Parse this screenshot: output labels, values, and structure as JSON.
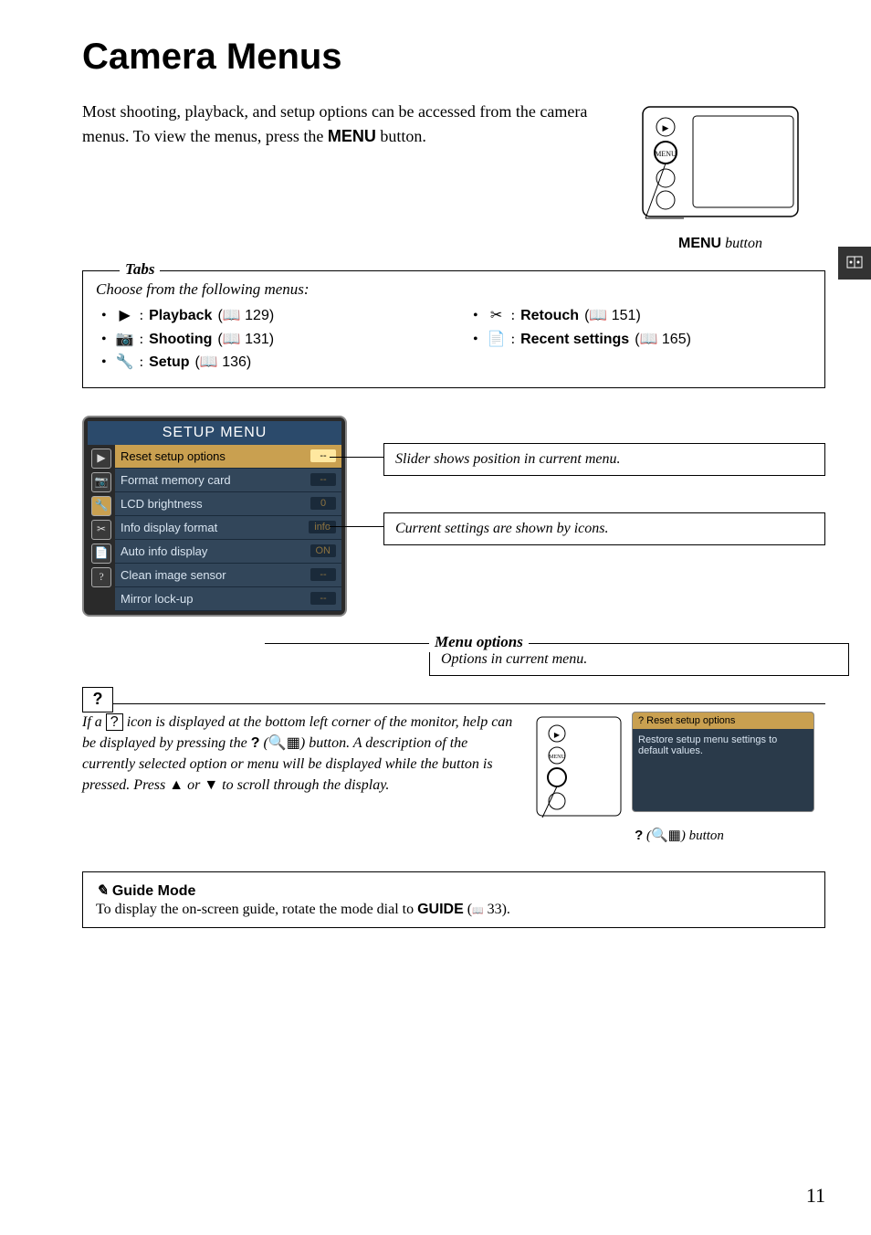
{
  "title": "Camera Menus",
  "intro": "Most shooting, playback, and setup options can be accessed from the camera menus. To view the menus, press the ",
  "intro_button": "MENU",
  "intro_suffix": " button.",
  "menu_button_caption_bold": "MENU",
  "menu_button_caption_ital": " button",
  "tabs": {
    "label": "Tabs",
    "intro": "Choose from the following menus:",
    "left": [
      {
        "icon": "▶",
        "name": "Playback",
        "ref": "129"
      },
      {
        "icon": "📷",
        "name": "Shooting",
        "ref": "131"
      },
      {
        "icon": "🔧",
        "name": "Setup",
        "ref": "136"
      }
    ],
    "right": [
      {
        "icon": "✂",
        "name": "Retouch",
        "ref": "151"
      },
      {
        "icon": "📄",
        "name": "Recent settings",
        "ref": "165"
      }
    ]
  },
  "setup": {
    "header": "SETUP MENU",
    "sidebar": [
      "▶",
      "📷",
      "🔧",
      "✂",
      "📄",
      "?"
    ],
    "items": [
      {
        "label": "Reset setup options",
        "val": "--",
        "sel": true
      },
      {
        "label": "Format memory card",
        "val": "--"
      },
      {
        "label": "LCD brightness",
        "val": "0"
      },
      {
        "label": "Info display format",
        "val": "info"
      },
      {
        "label": "Auto info display",
        "val": "ON"
      },
      {
        "label": "Clean image sensor",
        "val": "--"
      },
      {
        "label": "Mirror lock-up",
        "val": "--"
      }
    ]
  },
  "callout_slider": "Slider shows position in current menu.",
  "callout_icons": "Current settings are shown by icons.",
  "menu_options": {
    "label": "Menu options",
    "desc": "Options in current menu."
  },
  "help": {
    "icon": "?",
    "text_1": "If a ",
    "text_2": " icon is displayed at the bottom left corner of the monitor, help can be displayed by pressing the ",
    "text_3": " (",
    "text_4": ") button. A description of the currently selected option or menu will be displayed while the button is pressed. Press ▲ or ▼ to scroll through the display.",
    "popup_header": "? Reset setup options",
    "popup_body": "Restore setup menu settings to default values.",
    "caption_q": "?",
    "caption_paren": " (",
    "caption_end": ") button"
  },
  "guide": {
    "icon": "✎",
    "title": " Guide Mode",
    "body_1": "To display the on-screen guide, rotate the mode dial to ",
    "body_2": "GUIDE",
    "body_3": " (",
    "body_4": " 33)."
  },
  "page_num": "11",
  "colors": {
    "setup_header_bg": "#2b4a6b",
    "setup_sel_bg": "#c9a050",
    "setup_body_bg": "#32465a",
    "side_tab_bg": "#333333"
  }
}
